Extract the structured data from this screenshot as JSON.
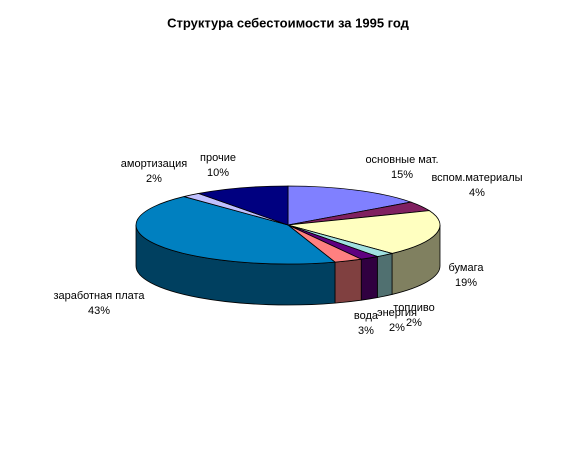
{
  "chart_data": {
    "type": "pie3d",
    "title": "Структура себестоимости за 1995 год",
    "categories": [
      "основные мат.",
      "вспом.материалы",
      "бумага",
      "топливо",
      "энергия",
      "вода",
      "заработная плата",
      "амортизация",
      "прочие"
    ],
    "values": [
      15,
      4,
      19,
      2,
      2,
      3,
      43,
      2,
      10
    ],
    "value_labels": [
      "15%",
      "4%",
      "19%",
      "2%",
      "2%",
      "3%",
      "43%",
      "2%",
      "10%"
    ],
    "colors": [
      "#8080ff",
      "#802060",
      "#ffffc0",
      "#a0e0e0",
      "#600080",
      "#ff8080",
      "#0080c0",
      "#c0c0ff",
      "#000080"
    ]
  }
}
